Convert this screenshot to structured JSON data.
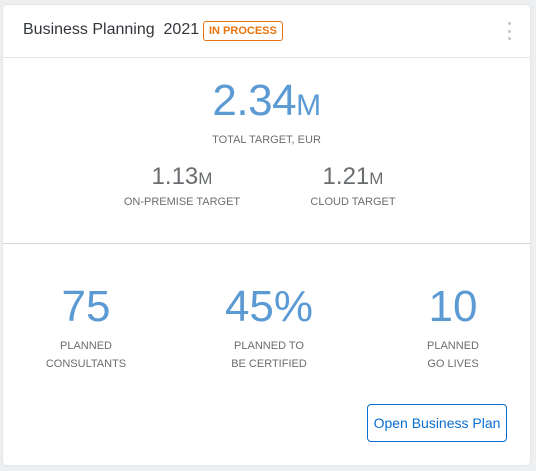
{
  "card": {
    "title": "Business Planning  2021",
    "status_badge": "IN PROCESS",
    "menu_icon": "more-vertical-icon"
  },
  "total": {
    "value": "2.34",
    "scale": "M",
    "label": "TOTAL TARGET, EUR"
  },
  "targets": [
    {
      "value": "1.13",
      "scale": "M",
      "label": "ON-PREMISE TARGET"
    },
    {
      "value": "1.21",
      "scale": "M",
      "label": "CLOUD TARGET"
    }
  ],
  "kpis": [
    {
      "value": "75",
      "label_line1": "PLANNED",
      "label_line2": "CONSULTANTS"
    },
    {
      "value": "45%",
      "label_line1": "PLANNED TO",
      "label_line2": "BE CERTIFIED"
    },
    {
      "value": "10",
      "label_line1": "PLANNED",
      "label_line2": "GO LIVES"
    }
  ],
  "actions": {
    "open_plan_label": "Open Business Plan"
  },
  "colors": {
    "accent": "#5b9ad3",
    "badge": "#e9730c",
    "button": "#0a6ed1"
  }
}
